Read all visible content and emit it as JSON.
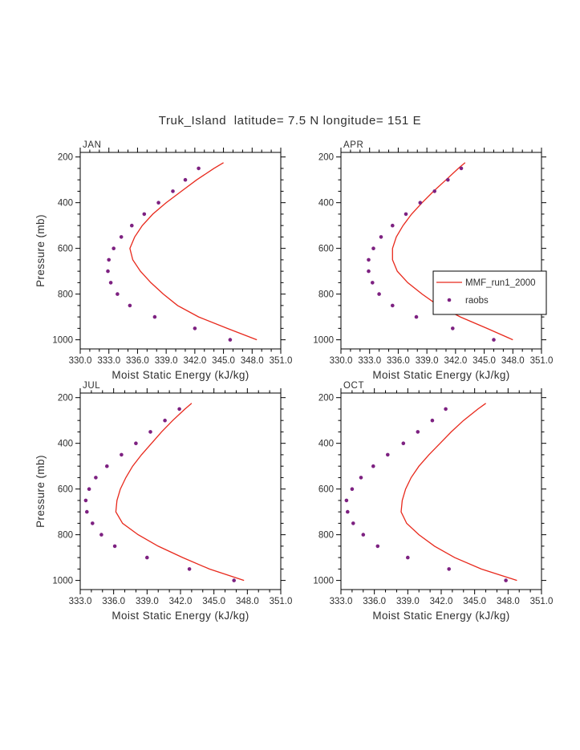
{
  "title": "Truk_Island  latitude= 7.5 N longitude= 151 E",
  "legend": {
    "line_label": "MMF_run1_2000",
    "dot_label": "raobs"
  },
  "colors": {
    "background": "#ffffff",
    "axis": "#000000",
    "text": "#2f2f2f",
    "line": "#e8291c",
    "dots": "#7d2181"
  },
  "chart_data": [
    {
      "type": "line",
      "title": "JAN",
      "xlabel": "Moist Static Energy (kJ/kg)",
      "ylabel": "Pressure (mb)",
      "xlim": [
        330,
        351
      ],
      "ylim": [
        180,
        1040
      ],
      "y_inverted": true,
      "grid": false,
      "xticks": [
        330,
        333,
        336,
        339,
        342,
        345,
        348,
        351
      ],
      "yticks": [
        200,
        400,
        600,
        800,
        1000
      ],
      "xtick_minor_step": 1,
      "ytick_minor_step": 50,
      "has_legend": false,
      "series": [
        {
          "name": "MMF_run1_2000",
          "type": "line",
          "pressure": [
            225,
            250,
            300,
            350,
            400,
            450,
            500,
            550,
            600,
            650,
            700,
            750,
            800,
            850,
            900,
            950,
            1000
          ],
          "mse": [
            345.0,
            344.0,
            342.2,
            340.6,
            339.0,
            337.6,
            336.5,
            335.7,
            335.2,
            335.5,
            336.3,
            337.4,
            338.7,
            340.2,
            342.4,
            345.4,
            348.5
          ]
        },
        {
          "name": "raobs",
          "type": "scatter",
          "pressure": [
            250,
            300,
            350,
            400,
            450,
            500,
            550,
            600,
            650,
            700,
            750,
            800,
            850,
            900,
            950,
            1000
          ],
          "mse": [
            342.4,
            341.0,
            339.7,
            338.2,
            336.7,
            335.4,
            334.3,
            333.5,
            333.0,
            332.9,
            333.2,
            333.9,
            335.2,
            337.8,
            342.0,
            345.7
          ]
        }
      ]
    },
    {
      "type": "line",
      "title": "APR",
      "xlabel": "Moist Static Energy (kJ/kg)",
      "ylabel": "",
      "xlim": [
        330,
        351
      ],
      "ylim": [
        180,
        1040
      ],
      "y_inverted": true,
      "grid": false,
      "xticks": [
        330,
        333,
        336,
        339,
        342,
        345,
        348,
        351
      ],
      "yticks": [
        200,
        400,
        600,
        800,
        1000
      ],
      "xtick_minor_step": 1,
      "ytick_minor_step": 50,
      "has_legend": true,
      "series": [
        {
          "name": "MMF_run1_2000",
          "type": "line",
          "pressure": [
            225,
            250,
            300,
            350,
            400,
            450,
            500,
            550,
            600,
            650,
            700,
            750,
            800,
            850,
            900,
            950,
            1000
          ],
          "mse": [
            343.0,
            342.3,
            341.0,
            339.7,
            338.5,
            337.4,
            336.5,
            335.8,
            335.4,
            335.4,
            335.9,
            337.0,
            338.5,
            340.2,
            342.5,
            345.3,
            348.0
          ]
        },
        {
          "name": "raobs",
          "type": "scatter",
          "pressure": [
            250,
            300,
            350,
            400,
            450,
            500,
            550,
            600,
            650,
            700,
            750,
            800,
            850,
            900,
            950,
            1000
          ],
          "mse": [
            342.6,
            341.2,
            339.8,
            338.3,
            336.8,
            335.4,
            334.2,
            333.4,
            332.9,
            332.9,
            333.3,
            334.0,
            335.4,
            337.9,
            341.7,
            346.0
          ]
        }
      ]
    },
    {
      "type": "line",
      "title": "JUL",
      "xlabel": "Moist Static Energy (kJ/kg)",
      "ylabel": "Pressure (mb)",
      "xlim": [
        333,
        351
      ],
      "ylim": [
        180,
        1040
      ],
      "y_inverted": true,
      "grid": false,
      "xticks": [
        333,
        336,
        339,
        342,
        345,
        348,
        351
      ],
      "yticks": [
        200,
        400,
        600,
        800,
        1000
      ],
      "xtick_minor_step": 1,
      "ytick_minor_step": 50,
      "has_legend": false,
      "series": [
        {
          "name": "MMF_run1_2000",
          "type": "line",
          "pressure": [
            225,
            250,
            300,
            350,
            400,
            450,
            500,
            550,
            600,
            650,
            700,
            750,
            800,
            850,
            900,
            950,
            1000
          ],
          "mse": [
            343.0,
            342.4,
            341.3,
            340.3,
            339.4,
            338.5,
            337.7,
            337.1,
            336.6,
            336.3,
            336.2,
            336.8,
            338.2,
            340.0,
            342.2,
            344.6,
            347.7
          ]
        },
        {
          "name": "raobs",
          "type": "scatter",
          "pressure": [
            250,
            300,
            350,
            400,
            450,
            500,
            550,
            600,
            650,
            700,
            750,
            800,
            850,
            900,
            950,
            1000
          ],
          "mse": [
            341.9,
            340.6,
            339.3,
            338.0,
            336.7,
            335.4,
            334.4,
            333.8,
            333.5,
            333.6,
            334.1,
            334.9,
            336.1,
            339.0,
            342.8,
            346.8
          ]
        }
      ]
    },
    {
      "type": "line",
      "title": "OCT",
      "xlabel": "Moist Static Energy (kJ/kg)",
      "ylabel": "",
      "xlim": [
        333,
        351
      ],
      "ylim": [
        180,
        1040
      ],
      "y_inverted": true,
      "grid": false,
      "xticks": [
        333,
        336,
        339,
        342,
        345,
        348,
        351
      ],
      "yticks": [
        200,
        400,
        600,
        800,
        1000
      ],
      "xtick_minor_step": 1,
      "ytick_minor_step": 50,
      "has_legend": false,
      "series": [
        {
          "name": "MMF_run1_2000",
          "type": "line",
          "pressure": [
            225,
            250,
            300,
            350,
            400,
            450,
            500,
            550,
            600,
            650,
            700,
            750,
            800,
            850,
            900,
            950,
            1000
          ],
          "mse": [
            346.0,
            345.3,
            344.0,
            342.9,
            341.9,
            340.9,
            340.0,
            339.3,
            338.8,
            338.5,
            338.4,
            338.9,
            340.0,
            341.4,
            343.2,
            345.6,
            348.8
          ]
        },
        {
          "name": "raobs",
          "type": "scatter",
          "pressure": [
            250,
            300,
            350,
            400,
            450,
            500,
            550,
            600,
            650,
            700,
            750,
            800,
            850,
            900,
            950,
            1000
          ],
          "mse": [
            342.4,
            341.2,
            339.9,
            338.6,
            337.2,
            335.9,
            334.8,
            334.0,
            333.5,
            333.6,
            334.1,
            335.0,
            336.3,
            339.0,
            342.7,
            347.8
          ]
        }
      ]
    }
  ]
}
